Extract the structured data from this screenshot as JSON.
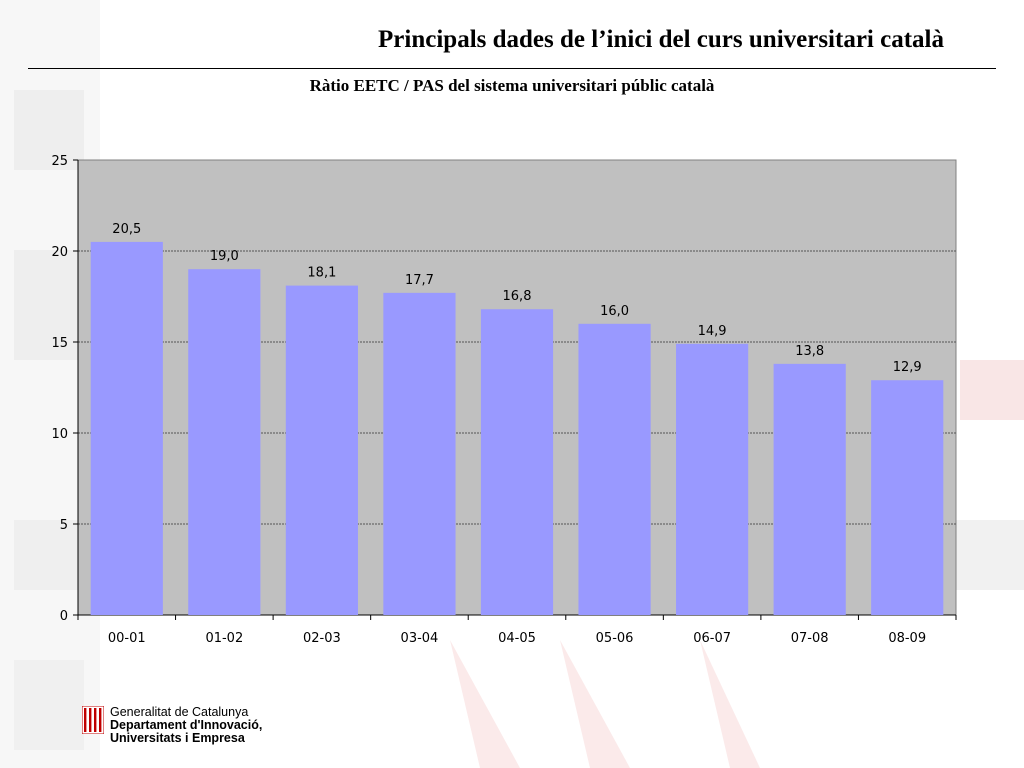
{
  "slide": {
    "title": "Principals dades de l’inici del curs universitari català"
  },
  "logo": {
    "line1": "Generalitat de Catalunya",
    "line2": "Departament d'Innovació,",
    "line3": "Universitats i Empresa"
  },
  "colors": {
    "bar": "#9999FF",
    "plot_background": "#C0C0C0",
    "watermark": "#F3F3F3",
    "watermark_red": "#FBEAEA"
  },
  "chart_data": {
    "type": "bar",
    "title": "Ràtio EETC / PAS del sistema universitari públic català",
    "categories": [
      "00-01",
      "01-02",
      "02-03",
      "03-04",
      "04-05",
      "05-06",
      "06-07",
      "07-08",
      "08-09"
    ],
    "values": [
      20.5,
      19.0,
      18.1,
      17.7,
      16.8,
      16.0,
      14.9,
      13.8,
      12.9
    ],
    "data_labels": [
      "20,5",
      "19,0",
      "18,1",
      "17,7",
      "16,8",
      "16,0",
      "14,9",
      "13,8",
      "12,9"
    ],
    "y_ticks": [
      0,
      5,
      10,
      15,
      20,
      25
    ],
    "ylim": [
      0,
      25
    ],
    "grid": true,
    "legend": "none"
  }
}
